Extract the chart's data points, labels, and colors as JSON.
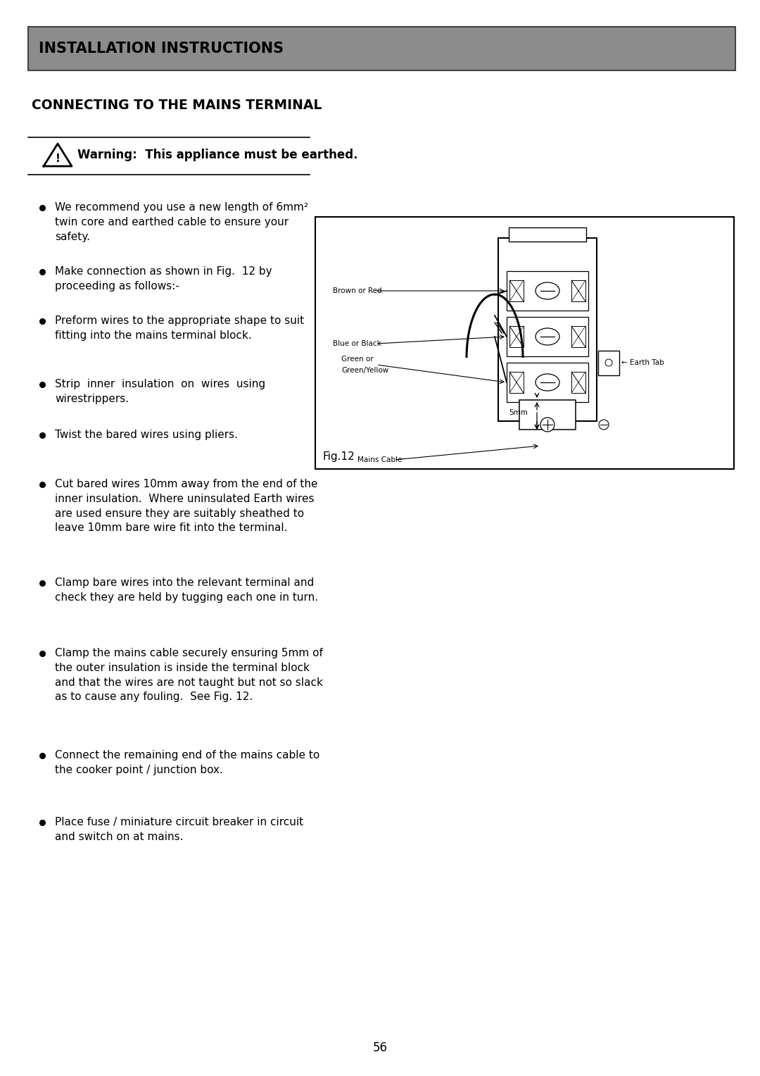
{
  "page_bg": "#ffffff",
  "header_bg": "#8c8c8c",
  "header_text": "INSTALLATION INSTRUCTIONS",
  "section_title": "CONNECTING TO THE MAINS TERMINAL",
  "warning_text": "Warning:  This appliance must be earthed.",
  "bullet_points": [
    "We recommend you use a new length of 6mm²\ntwin core and earthed cable to ensure your\nsafety.",
    "Make connection as shown in Fig.  12 by\nproceeding as follows:-",
    "Preform wires to the appropriate shape to suit\nfitting into the mains terminal block.",
    "Strip  inner  insulation  on  wires  using\nwirestrippers.",
    "Twist the bared wires using pliers.",
    "Cut bared wires 10mm away from the end of the\ninner insulation.  Where uninsulated Earth wires\nare used ensure they are suitably sheathed to\nleave 10mm bare wire fit into the terminal.",
    "Clamp bare wires into the relevant terminal and\ncheck they are held by tugging each one in turn.",
    "Clamp the mains cable securely ensuring 5mm of\nthe outer insulation is inside the terminal block\nand that the wires are not taught but not so slack\nas to cause any fouling.  See Fig. 12.",
    "Connect the remaining end of the mains cable to\nthe cooker point / junction box.",
    "Place fuse / miniature circuit breaker in circuit\nand switch on at mains."
  ],
  "fig_label": "Fig.12",
  "page_number": "56"
}
